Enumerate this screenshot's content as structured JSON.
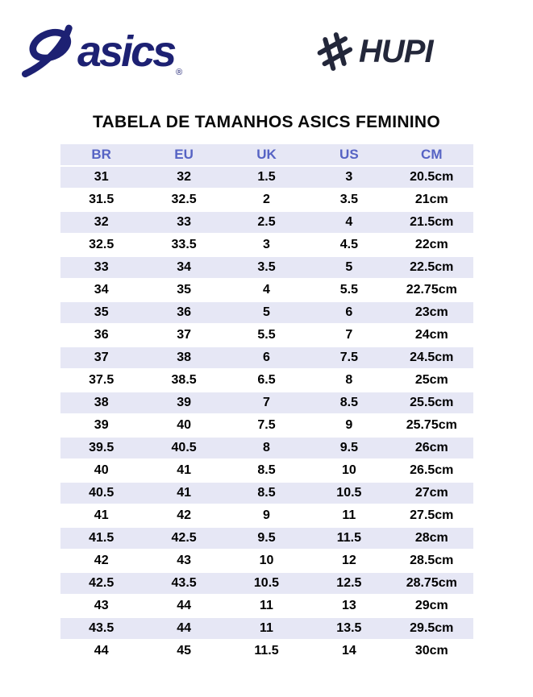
{
  "page": {
    "title": "TABELA DE TAMANHOS ASICS FEMININO"
  },
  "logos": {
    "asics": {
      "wordmark": "asics",
      "registered": "®"
    },
    "hupi": {
      "wordmark": "HUPI"
    }
  },
  "table": {
    "headers": [
      "BR",
      "EU",
      "UK",
      "US",
      "CM"
    ],
    "rows": [
      [
        "31",
        "32",
        "1.5",
        "3",
        "20.5cm"
      ],
      [
        "31.5",
        "32.5",
        "2",
        "3.5",
        "21cm"
      ],
      [
        "32",
        "33",
        "2.5",
        "4",
        "21.5cm"
      ],
      [
        "32.5",
        "33.5",
        "3",
        "4.5",
        "22cm"
      ],
      [
        "33",
        "34",
        "3.5",
        "5",
        "22.5cm"
      ],
      [
        "34",
        "35",
        "4",
        "5.5",
        "22.75cm"
      ],
      [
        "35",
        "36",
        "5",
        "6",
        "23cm"
      ],
      [
        "36",
        "37",
        "5.5",
        "7",
        "24cm"
      ],
      [
        "37",
        "38",
        "6",
        "7.5",
        "24.5cm"
      ],
      [
        "37.5",
        "38.5",
        "6.5",
        "8",
        "25cm"
      ],
      [
        "38",
        "39",
        "7",
        "8.5",
        "25.5cm"
      ],
      [
        "39",
        "40",
        "7.5",
        "9",
        "25.75cm"
      ],
      [
        "39.5",
        "40.5",
        "8",
        "9.5",
        "26cm"
      ],
      [
        "40",
        "41",
        "8.5",
        "10",
        "26.5cm"
      ],
      [
        "40.5",
        "41",
        "8.5",
        "10.5",
        "27cm"
      ],
      [
        "41",
        "42",
        "9",
        "11",
        "27.5cm"
      ],
      [
        "41.5",
        "42.5",
        "9.5",
        "11.5",
        "28cm"
      ],
      [
        "42",
        "43",
        "10",
        "12",
        "28.5cm"
      ],
      [
        "42.5",
        "43.5",
        "10.5",
        "12.5",
        "28.75cm"
      ],
      [
        "43",
        "44",
        "11",
        "13",
        "29cm"
      ],
      [
        "43.5",
        "44",
        "11",
        "13.5",
        "29.5cm"
      ],
      [
        "44",
        "45",
        "11.5",
        "14",
        "30cm"
      ]
    ]
  },
  "colors": {
    "row_lavender": "#E6E7F5",
    "header_text": "#5663C4",
    "asics_navy": "#1D2173",
    "hupi_dark": "#23273A"
  }
}
